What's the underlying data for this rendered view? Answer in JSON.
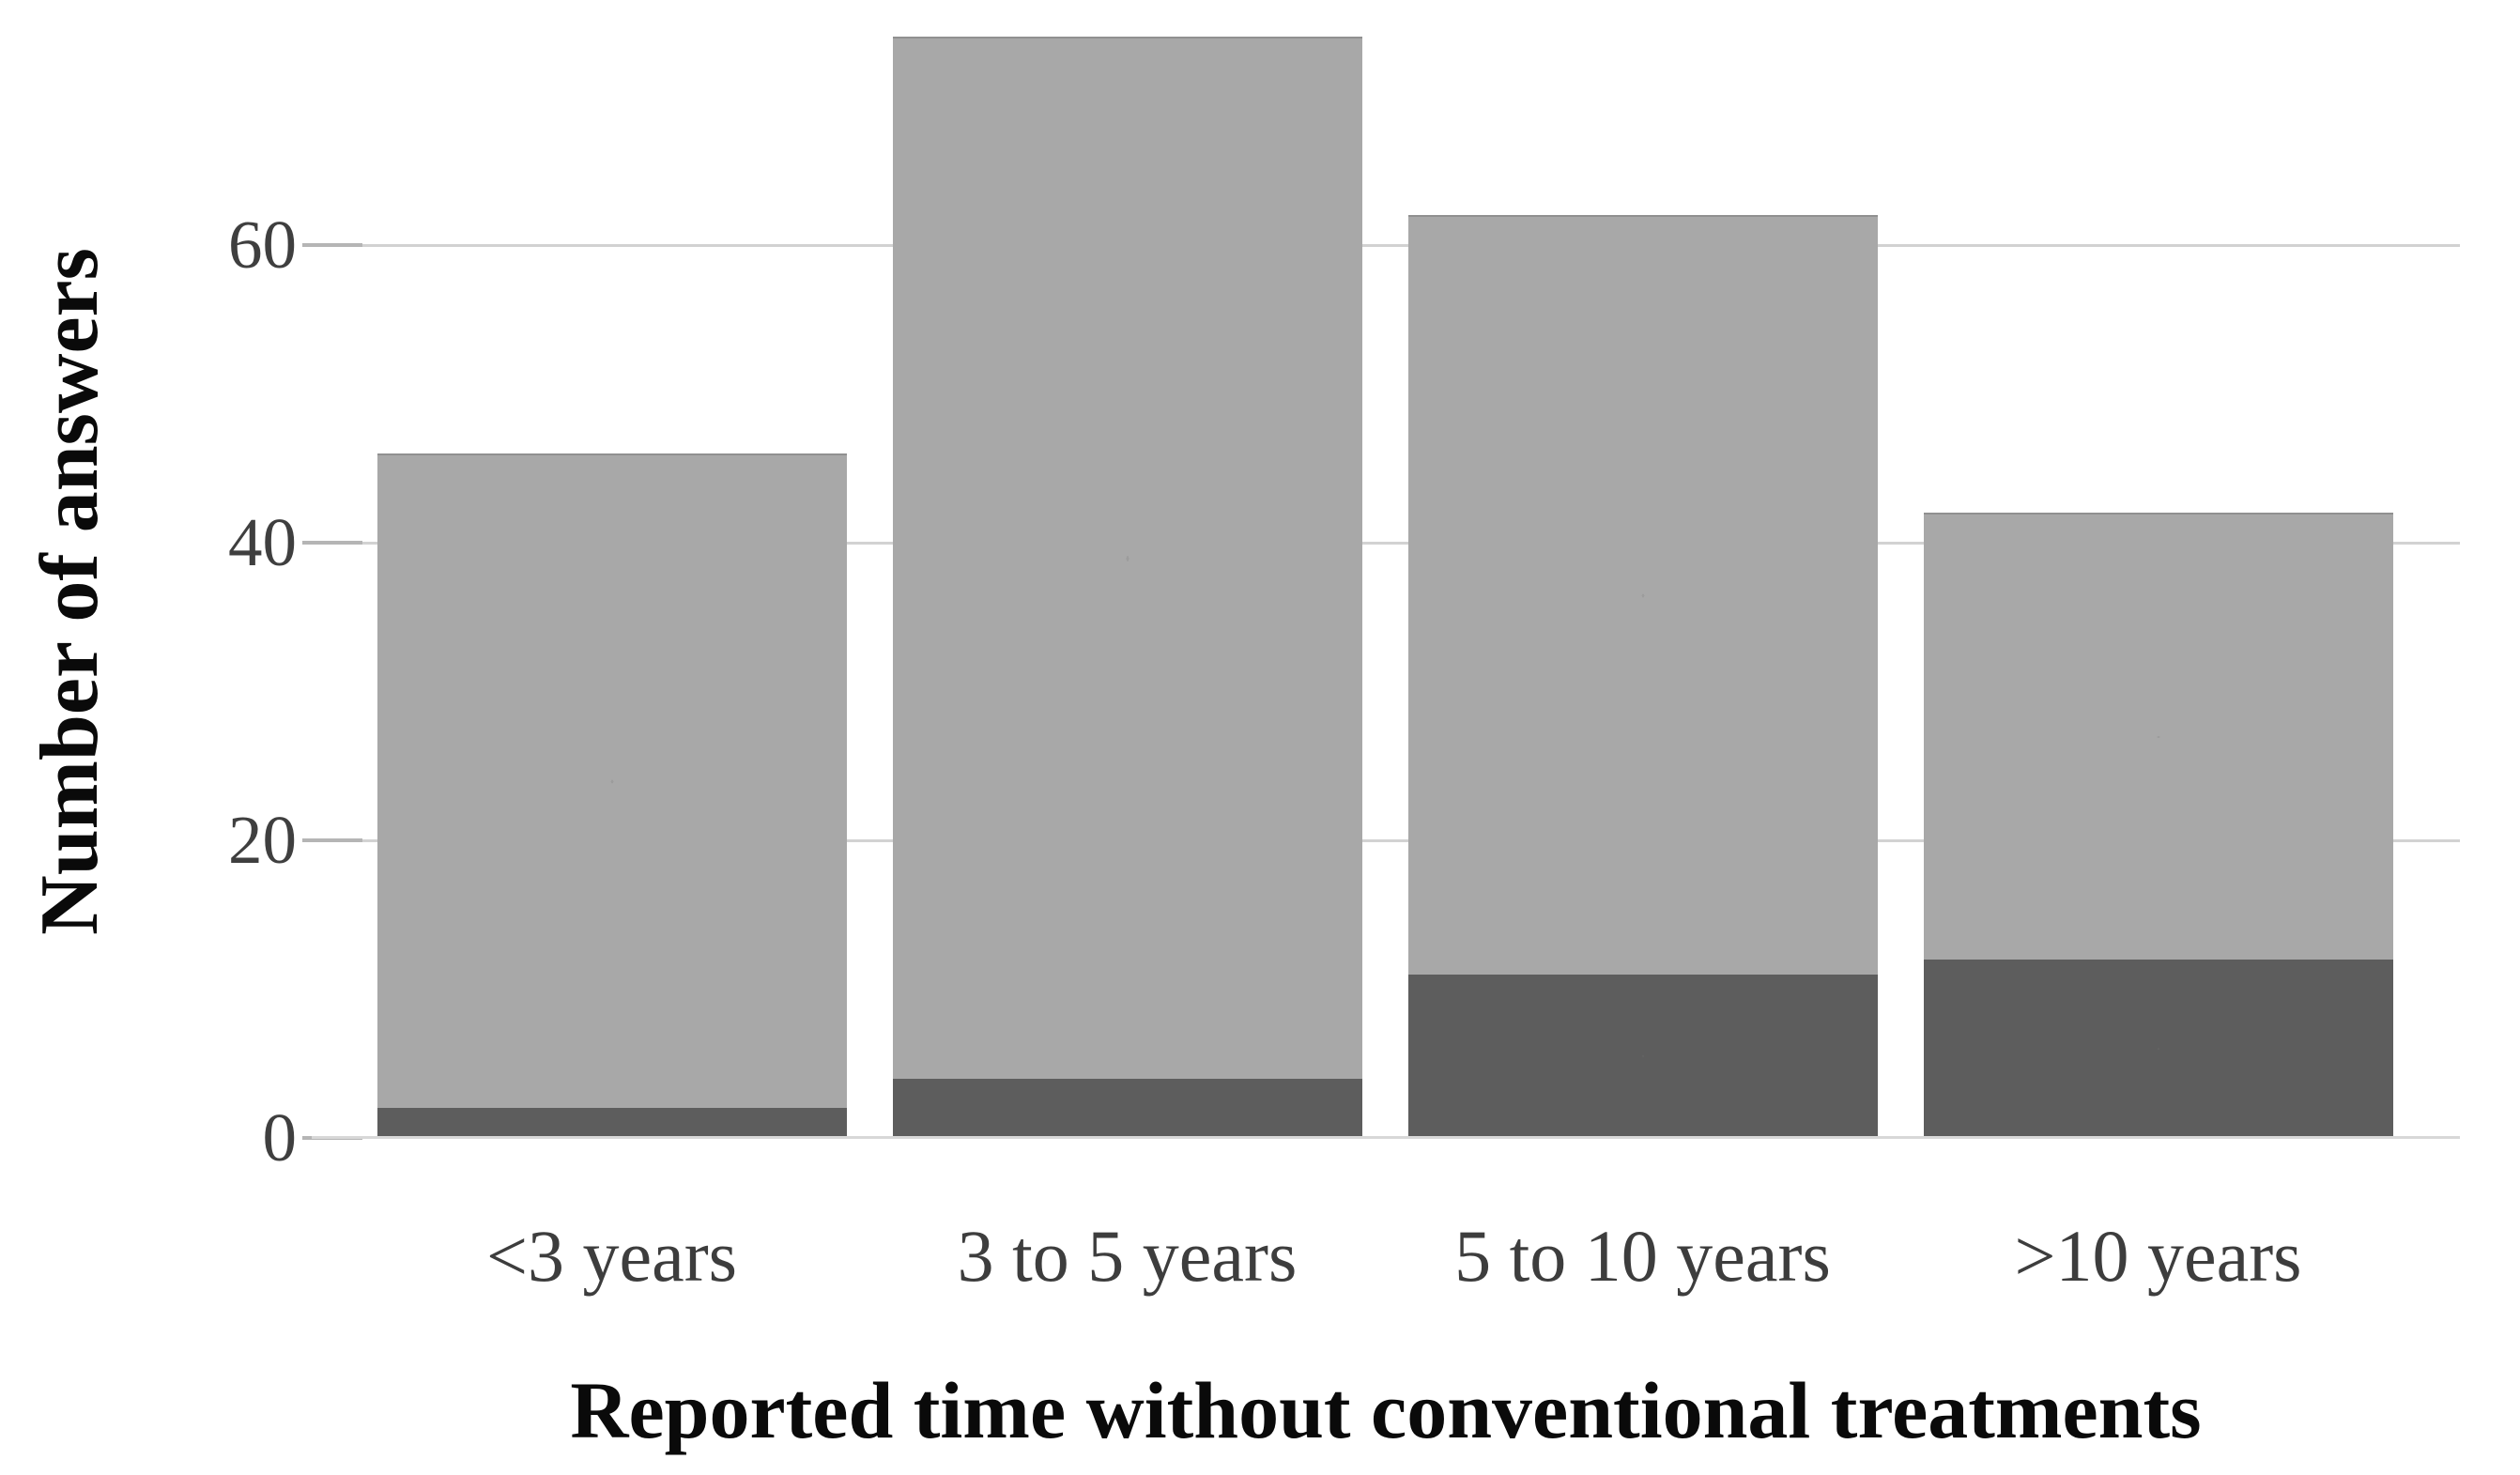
{
  "chart_data": {
    "type": "bar",
    "stacked": true,
    "title": "",
    "xlabel": "Reported time without conventional treatments",
    "ylabel": "Number of answers",
    "categories": [
      "<3 years",
      "3 to 5 years",
      "5 to 10 years",
      ">10 years"
    ],
    "series": [
      {
        "name": "bottom-dark-segment",
        "color": "#5d5d5d",
        "values": [
          2,
          4,
          11,
          12
        ]
      },
      {
        "name": "top-light-segment",
        "color": "#a8a8a8",
        "values": [
          44,
          70,
          51,
          30
        ]
      }
    ],
    "totals": [
      46,
      74,
      62,
      42
    ],
    "yticks": [
      0,
      20,
      40,
      60
    ],
    "ylim": [
      0,
      75
    ],
    "grid": true,
    "legend_position": "none"
  },
  "colors": {
    "bar_light": "#a8a8a8",
    "bar_dark": "#5d5d5d",
    "gridline": "#d2d2d2",
    "baseline": "#d8d8d8",
    "tick_mark": "#b5b5b5",
    "tick_text": "#3f3f3f",
    "category_text": "#3d3d3d",
    "title_text": "#0a0a0a",
    "background": "#ffffff"
  }
}
